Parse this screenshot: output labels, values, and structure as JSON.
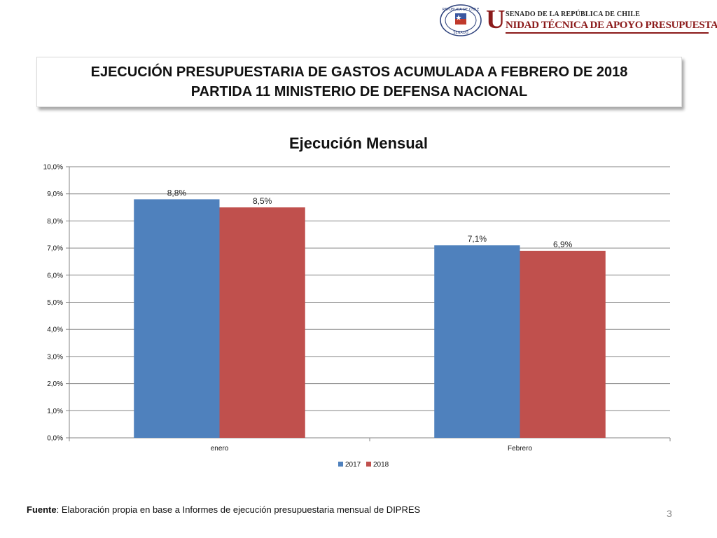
{
  "header": {
    "logo_letter": "U",
    "logo_line1": "SENADO DE LA REPÚBLICA DE CHILE",
    "logo_line2": "NIDAD TÉCNICA DE APOYO PRESUPUESTARIO",
    "seal_top_text": "REPÚBLICA DE CHILE",
    "seal_bottom_text": "SENADO",
    "accent_color": "#8b1a1a"
  },
  "title": {
    "line1": "EJECUCIÓN PRESUPUESTARIA DE GASTOS ACUMULADA A FEBRERO DE 2018",
    "line2": "PARTIDA 11 MINISTERIO DE DEFENSA NACIONAL"
  },
  "chart_data": {
    "type": "bar",
    "title": "Ejecución Mensual",
    "categories": [
      "enero",
      "Febrero"
    ],
    "series": [
      {
        "name": "2017",
        "values": [
          8.8,
          7.1
        ],
        "labels": [
          "8,8%",
          "7,1%"
        ],
        "color": "#4f81bd"
      },
      {
        "name": "2018",
        "values": [
          8.5,
          6.9
        ],
        "labels": [
          "8,5%",
          "6,9%"
        ],
        "color": "#c0504d"
      }
    ],
    "ylim": [
      0,
      10
    ],
    "yticks": [
      "0,0%",
      "1,0%",
      "2,0%",
      "3,0%",
      "4,0%",
      "5,0%",
      "6,0%",
      "7,0%",
      "8,0%",
      "9,0%",
      "10,0%"
    ],
    "grid": true,
    "legend": "bottom"
  },
  "footer": {
    "source_label": "Fuente",
    "source_text": ": Elaboración propia en base  a Informes de ejecución presupuestaria mensual de DIPRES"
  },
  "page_number": "3"
}
